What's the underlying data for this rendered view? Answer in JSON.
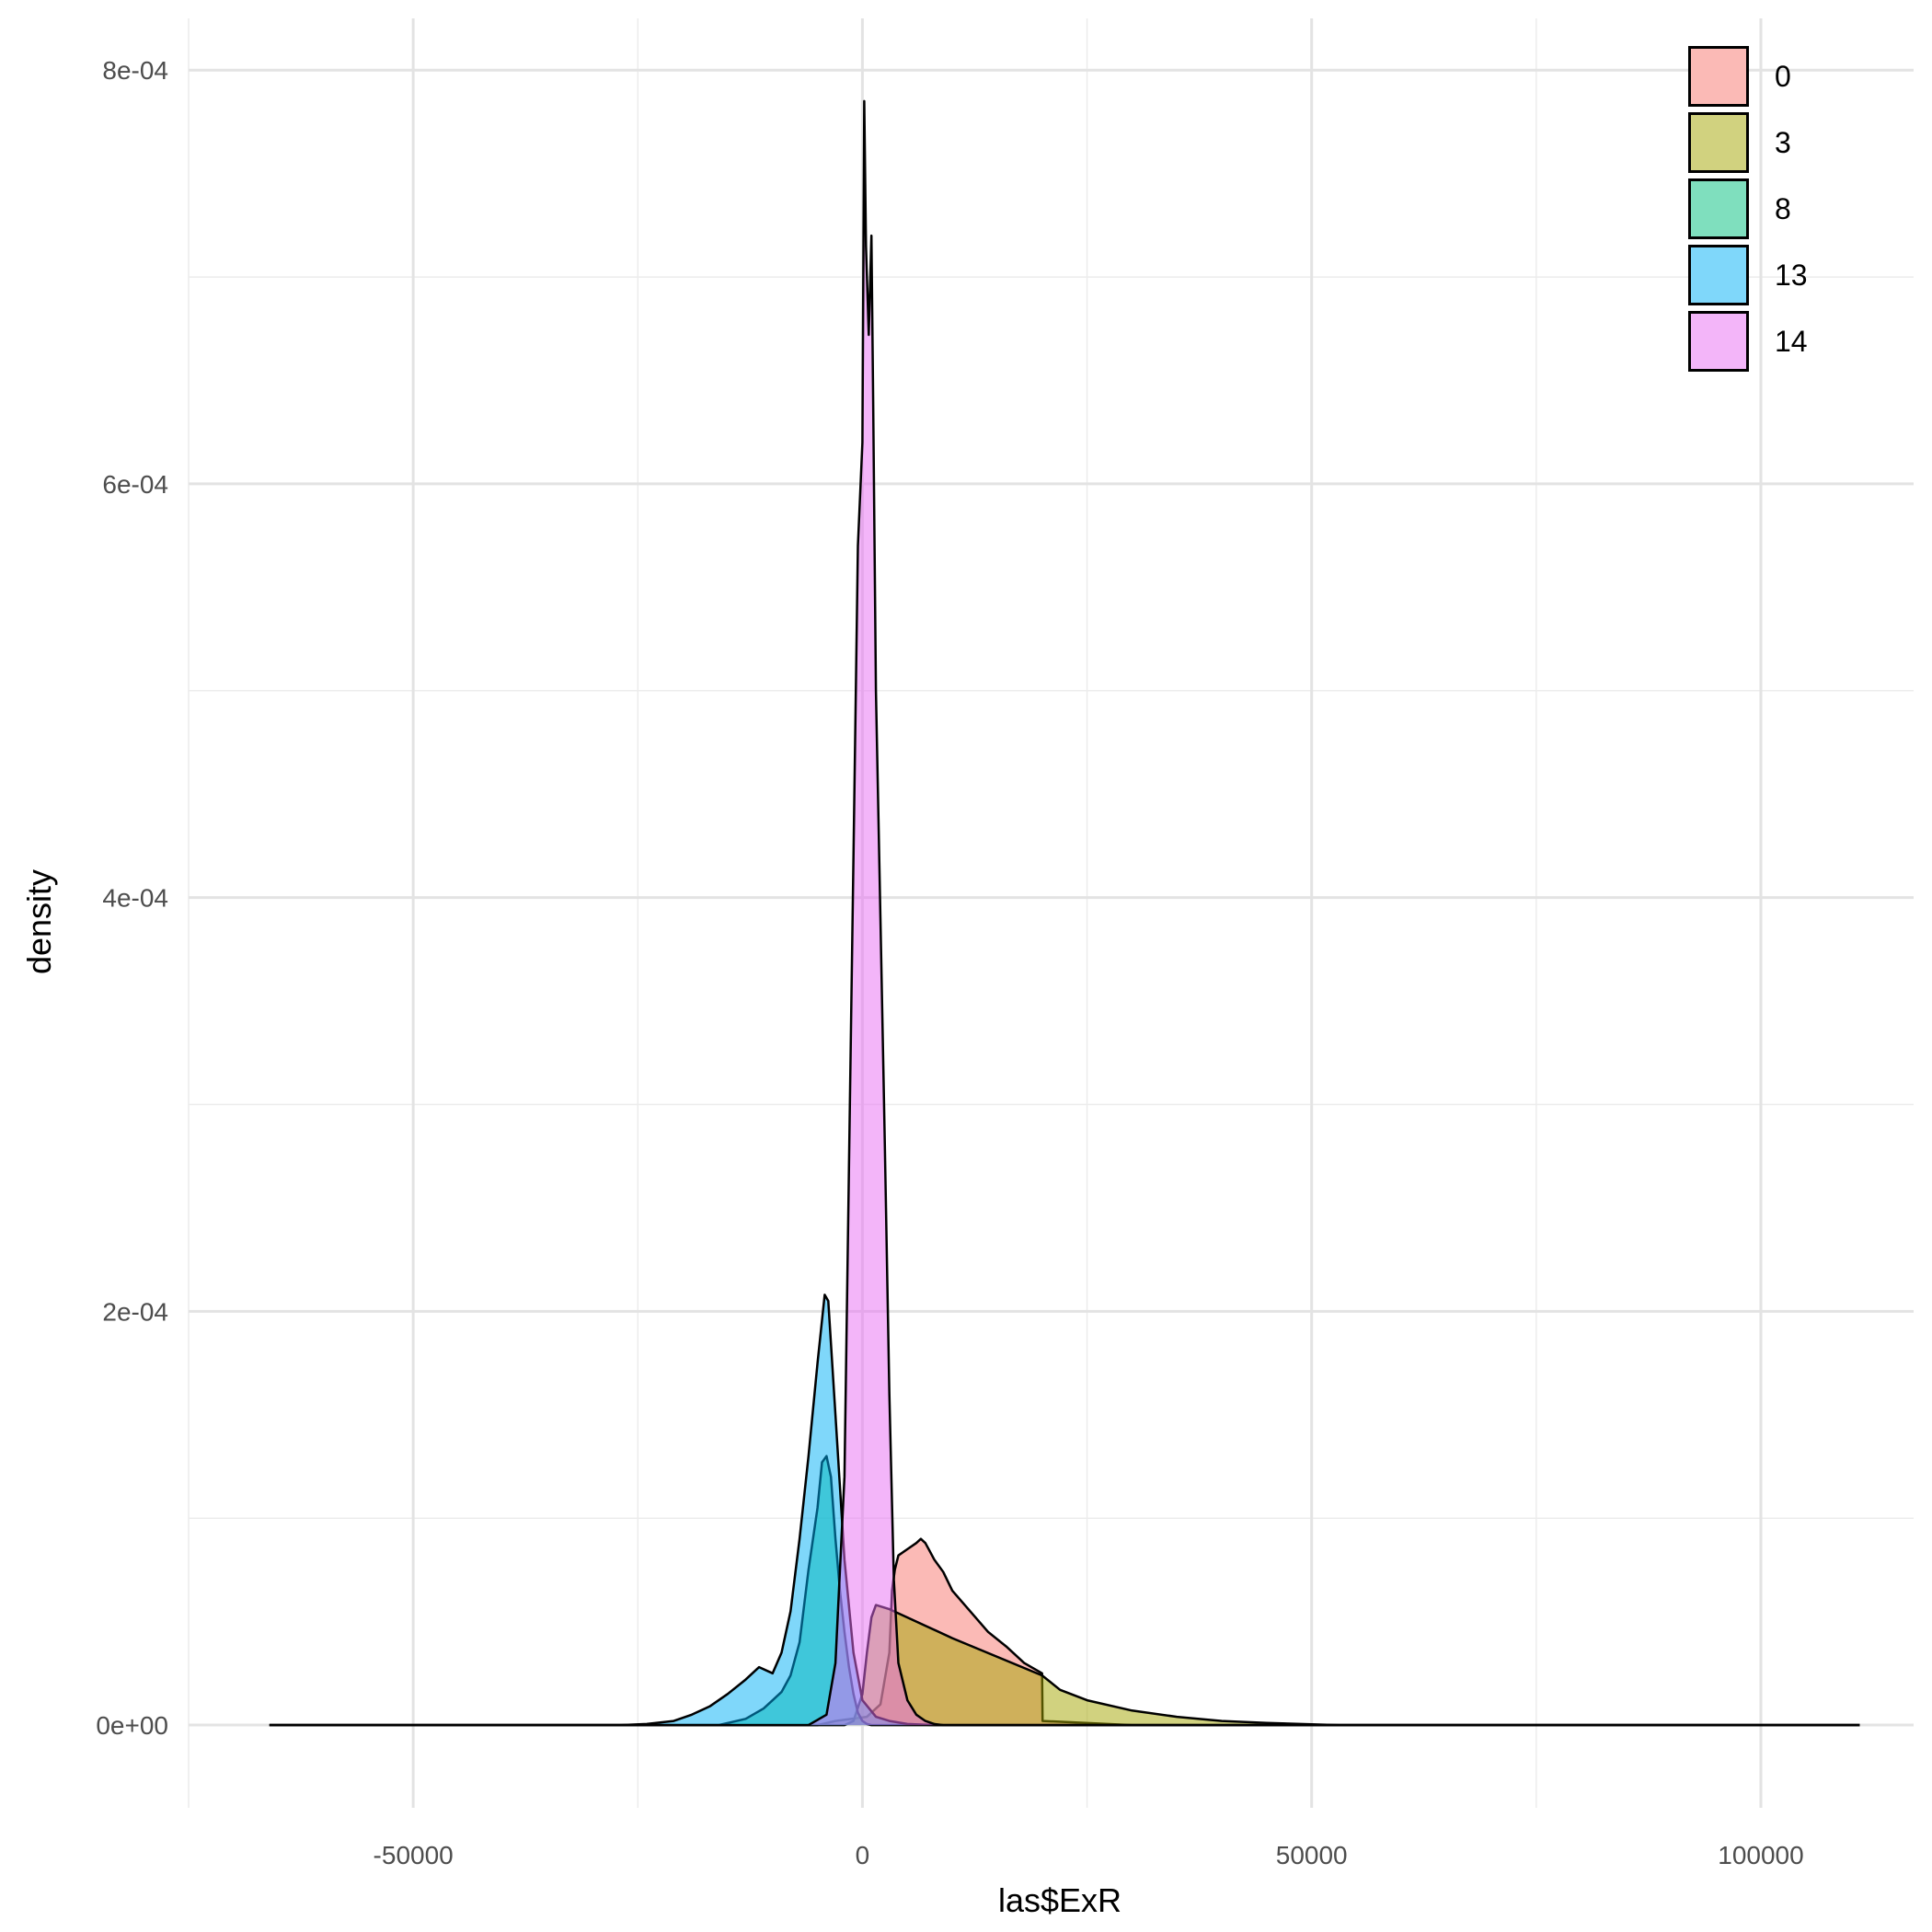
{
  "chart_data": {
    "type": "area",
    "xlabel": "las$ExR",
    "ylabel": "density",
    "xlim": [
      -75000,
      117000
    ],
    "ylim": [
      -4e-05,
      0.000825
    ],
    "x_ticks": [
      -50000,
      0,
      50000,
      100000
    ],
    "x_tick_labels": [
      "-50000",
      "0",
      "50000",
      "100000"
    ],
    "y_ticks": [
      0,
      0.0002,
      0.0004,
      0.0006,
      0.0008
    ],
    "y_tick_labels": [
      "0e+00",
      "2e-04",
      "4e-04",
      "6e-04",
      "8e-04"
    ],
    "grid": true,
    "legend_position": "top-right",
    "legend_entries": [
      "0",
      "3",
      "8",
      "13",
      "14"
    ],
    "series": [
      {
        "name": "0",
        "color": "#F8766D",
        "x": [
          -66000,
          -5000,
          -3000,
          500,
          2000,
          3000,
          3300,
          3600,
          4000,
          5000,
          6000,
          6500,
          7000,
          7500,
          8000,
          9000,
          10000,
          12000,
          14000,
          16000,
          18000,
          20000,
          20050,
          30000,
          111000
        ],
        "y": [
          0,
          0,
          2e-06,
          4e-06,
          1e-05,
          3.5e-05,
          6.5e-05,
          7.5e-05,
          8.2e-05,
          8.5e-05,
          8.8e-05,
          9e-05,
          8.8e-05,
          8.4e-05,
          8e-05,
          7.4e-05,
          6.5e-05,
          5.5e-05,
          4.5e-05,
          3.8e-05,
          3e-05,
          2.5e-05,
          2e-06,
          0,
          0
        ]
      },
      {
        "name": "3",
        "color": "#A3A500",
        "x": [
          -66000,
          -2000,
          -1000,
          0,
          500,
          1000,
          1500,
          3000,
          5000,
          7000,
          10000,
          15000,
          20000,
          22000,
          25000,
          30000,
          35000,
          40000,
          45000,
          50000,
          53000,
          111000
        ],
        "y": [
          0,
          0,
          2e-06,
          1.5e-05,
          3.5e-05,
          5.2e-05,
          5.8e-05,
          5.6e-05,
          5.2e-05,
          4.8e-05,
          4.2e-05,
          3.3e-05,
          2.4e-05,
          1.7e-05,
          1.2e-05,
          7e-06,
          4e-06,
          2e-06,
          1e-06,
          4e-07,
          0,
          0
        ]
      },
      {
        "name": "8",
        "color": "#00BF7D",
        "x": [
          -66000,
          -16000,
          -13000,
          -11000,
          -10000,
          -9000,
          -8000,
          -7000,
          -6000,
          -5000,
          -4500,
          -4000,
          -3500,
          -3000,
          -2500,
          -2000,
          -1500,
          -1000,
          -500,
          0,
          500,
          1000,
          111000
        ],
        "y": [
          0,
          0,
          3e-06,
          8e-06,
          1.2e-05,
          1.6e-05,
          2.4e-05,
          4e-05,
          7.5e-05,
          0.000105,
          0.000127,
          0.00013,
          0.00012,
          9e-05,
          6.5e-05,
          4.5e-05,
          2.8e-05,
          1.5e-05,
          6e-06,
          2e-06,
          5e-07,
          0,
          0
        ]
      },
      {
        "name": "13",
        "color": "#00B0F6",
        "x": [
          -66000,
          -27000,
          -24000,
          -21000,
          -19000,
          -17000,
          -15000,
          -13000,
          -11500,
          -10000,
          -9000,
          -8000,
          -7000,
          -6000,
          -5000,
          -4200,
          -3800,
          -3000,
          -2000,
          -1000,
          0,
          1500,
          3000,
          5000,
          8000,
          111000
        ],
        "y": [
          0,
          0,
          5e-07,
          2e-06,
          5e-06,
          9e-06,
          1.5e-05,
          2.2e-05,
          2.8e-05,
          2.5e-05,
          3.5e-05,
          5.5e-05,
          9e-05,
          0.00013,
          0.000175,
          0.000208,
          0.000205,
          0.00015,
          8e-05,
          3.5e-05,
          1.2e-05,
          4e-06,
          2e-06,
          5e-07,
          0,
          0
        ]
      },
      {
        "name": "14",
        "color": "#E76BF3",
        "x": [
          -66000,
          -6000,
          -4000,
          -3000,
          -2000,
          -1000,
          -500,
          0,
          200,
          400,
          700,
          1000,
          1200,
          1500,
          2000,
          2500,
          3000,
          3500,
          4000,
          5000,
          6000,
          7000,
          8000,
          9000,
          111000
        ],
        "y": [
          0,
          0,
          5e-06,
          3e-05,
          0.00012,
          0.00042,
          0.00057,
          0.00062,
          0.000785,
          0.000715,
          0.000672,
          0.00072,
          0.00064,
          0.0005,
          0.00039,
          0.00028,
          0.00016,
          7e-05,
          3e-05,
          1.2e-05,
          5e-06,
          2e-06,
          5e-07,
          0,
          0
        ]
      }
    ]
  }
}
